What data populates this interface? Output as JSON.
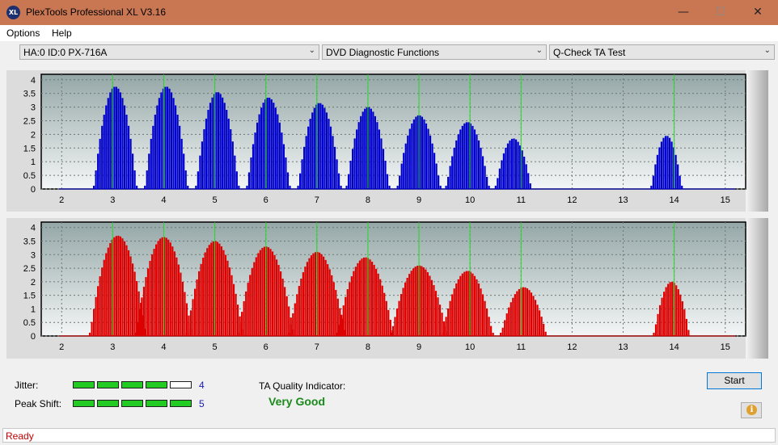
{
  "window": {
    "title": "PlexTools Professional XL V3.16",
    "icon_text": "XL",
    "minimize": "—",
    "maximize": "☐",
    "close": "✕"
  },
  "menu": [
    {
      "label": "Options"
    },
    {
      "label": "Help"
    }
  ],
  "toolbar": {
    "drive": "HA:0 ID:0  PX-716A",
    "function": "DVD Diagnostic Functions",
    "test": "Q-Check TA Test",
    "arrow": "⌄"
  },
  "chart_data": [
    {
      "type": "bar",
      "series_color": "#0000cc",
      "x_ticks": [
        2,
        3,
        4,
        5,
        6,
        7,
        8,
        9,
        10,
        11,
        12,
        13,
        14,
        15
      ],
      "y_ticks": [
        "0",
        "0.5",
        "1",
        "1.5",
        "2",
        "2.5",
        "3",
        "3.5",
        "4"
      ],
      "xlim": [
        1.6,
        15.4
      ],
      "ylim": [
        0,
        4.2
      ],
      "green_lines": [
        3,
        4,
        5,
        6,
        7,
        8,
        9,
        10,
        11,
        14
      ],
      "peaks": [
        {
          "center": 3.05,
          "height": 3.75,
          "halfwidth": 0.42
        },
        {
          "center": 4.05,
          "height": 3.75,
          "halfwidth": 0.42
        },
        {
          "center": 5.05,
          "height": 3.55,
          "halfwidth": 0.42
        },
        {
          "center": 6.05,
          "height": 3.35,
          "halfwidth": 0.42
        },
        {
          "center": 7.05,
          "height": 3.15,
          "halfwidth": 0.42
        },
        {
          "center": 8.0,
          "height": 3.0,
          "halfwidth": 0.42
        },
        {
          "center": 9.0,
          "height": 2.7,
          "halfwidth": 0.42
        },
        {
          "center": 9.95,
          "height": 2.45,
          "halfwidth": 0.42
        },
        {
          "center": 10.85,
          "height": 1.85,
          "halfwidth": 0.35
        },
        {
          "center": 13.85,
          "height": 1.95,
          "halfwidth": 0.3
        }
      ]
    },
    {
      "type": "bar",
      "series_color": "#dd0000",
      "x_ticks": [
        2,
        3,
        4,
        5,
        6,
        7,
        8,
        9,
        10,
        11,
        12,
        13,
        14,
        15
      ],
      "y_ticks": [
        "0",
        "0.5",
        "1",
        "1.5",
        "2",
        "2.5",
        "3",
        "3.5",
        "4"
      ],
      "xlim": [
        1.6,
        15.4
      ],
      "ylim": [
        0,
        4.2
      ],
      "green_lines": [
        3,
        4,
        5,
        6,
        7,
        8,
        9,
        10,
        11,
        14
      ],
      "peaks": [
        {
          "center": 3.1,
          "height": 3.7,
          "halfwidth": 0.55
        },
        {
          "center": 4.0,
          "height": 3.65,
          "halfwidth": 0.55
        },
        {
          "center": 5.0,
          "height": 3.5,
          "halfwidth": 0.55
        },
        {
          "center": 6.0,
          "height": 3.3,
          "halfwidth": 0.55
        },
        {
          "center": 7.0,
          "height": 3.1,
          "halfwidth": 0.55
        },
        {
          "center": 7.95,
          "height": 2.9,
          "halfwidth": 0.55
        },
        {
          "center": 9.0,
          "height": 2.6,
          "halfwidth": 0.55
        },
        {
          "center": 9.95,
          "height": 2.4,
          "halfwidth": 0.5
        },
        {
          "center": 11.05,
          "height": 1.8,
          "halfwidth": 0.45
        },
        {
          "center": 13.95,
          "height": 2.0,
          "halfwidth": 0.35
        }
      ]
    }
  ],
  "metrics": {
    "jitter_label": "Jitter:",
    "jitter_value": "4",
    "jitter_filled": 4,
    "peak_label": "Peak Shift:",
    "peak_value": "5",
    "peak_filled": 5,
    "meter_cells": 5,
    "fill_color": "#22cc22",
    "empty_color": "#ffffff"
  },
  "quality": {
    "label": "TA Quality Indicator:",
    "value": "Very Good"
  },
  "buttons": {
    "start": "Start",
    "info_icon": "i"
  },
  "status": {
    "text": "Ready"
  }
}
